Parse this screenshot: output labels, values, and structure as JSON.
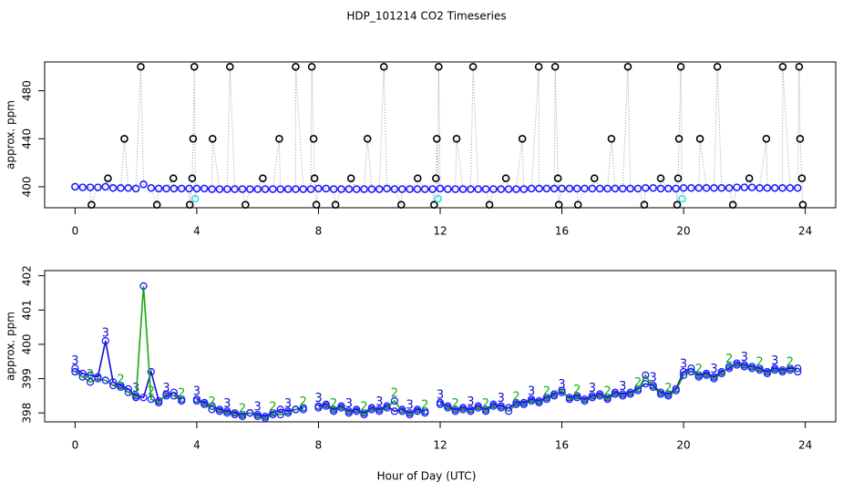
{
  "chart_data": [
    {
      "type": "scatter",
      "title": "HDP_101214  CO2 Timeseries",
      "ylabel": "approx. ppm",
      "xlim": [
        -1,
        25
      ],
      "ylim": [
        382.5,
        504
      ],
      "xticks": [
        0,
        4,
        8,
        12,
        16,
        20,
        24
      ],
      "yticks": [
        400,
        440,
        480
      ],
      "connector_color": "#9a9a9a",
      "series": [
        {
          "color": "#1f1fff",
          "x": [
            0,
            0.25,
            0.5,
            0.75,
            1,
            1.25,
            1.5,
            1.75,
            2,
            2.25,
            2.5,
            2.75,
            3,
            3.25,
            3.5,
            3.75,
            4,
            4.25,
            4.5,
            4.75,
            5,
            5.25,
            5.5,
            5.75,
            6,
            6.25,
            6.5,
            6.75,
            7,
            7.25,
            7.5,
            7.75,
            8,
            8.25,
            8.5,
            8.75,
            9,
            9.25,
            9.5,
            9.75,
            10,
            10.25,
            10.5,
            10.75,
            11,
            11.25,
            11.5,
            11.75,
            12,
            12.25,
            12.5,
            12.75,
            13,
            13.25,
            13.5,
            13.75,
            14,
            14.25,
            14.5,
            14.75,
            15,
            15.25,
            15.5,
            15.75,
            16,
            16.25,
            16.5,
            16.75,
            17,
            17.25,
            17.5,
            17.75,
            18,
            18.25,
            18.5,
            18.75,
            19,
            19.25,
            19.5,
            19.75,
            20,
            20.25,
            20.5,
            20.75,
            21,
            21.25,
            21.5,
            21.75,
            22,
            22.25,
            22.5,
            22.75,
            23,
            23.25,
            23.5,
            23.75
          ],
          "values": [
            400,
            399.5,
            399.5,
            399.5,
            400,
            399,
            399,
            399,
            398.5,
            402,
            399,
            398.5,
            398.5,
            398.5,
            398.5,
            398.5,
            398.5,
            398.5,
            398,
            398,
            398,
            398,
            398,
            398,
            398,
            398,
            398,
            398,
            398,
            398,
            398,
            398,
            398.5,
            398.5,
            398,
            398,
            398,
            398,
            398,
            398,
            398,
            398.5,
            398,
            398,
            398,
            398,
            398,
            398,
            398.5,
            398,
            398,
            398,
            398,
            398,
            398,
            398,
            398,
            398,
            398,
            398,
            398.5,
            398.5,
            398.5,
            398.5,
            398.5,
            398.5,
            398.5,
            398.5,
            398.5,
            398.5,
            398.5,
            398.5,
            398.5,
            398.5,
            398.5,
            399,
            399,
            398.5,
            398.5,
            398.5,
            399,
            399,
            399,
            399,
            399,
            399,
            399,
            399.5,
            399.5,
            399.5,
            399,
            399,
            399,
            399,
            399,
            399
          ]
        },
        {
          "color": "#000000",
          "x": [
            0.54,
            1.08,
            1.62,
            2.16,
            2.69,
            3.23,
            3.77,
            3.85,
            3.88,
            3.92,
            4.52,
            5.09,
            5.6,
            6.17,
            6.71,
            7.25,
            7.78,
            7.84,
            7.87,
            7.93,
            8.56,
            9.07,
            9.61,
            10.15,
            10.72,
            11.26,
            11.8,
            11.86,
            11.89,
            11.95,
            12.54,
            13.08,
            13.62,
            14.16,
            14.7,
            15.24,
            15.78,
            15.87,
            15.9,
            16.53,
            17.07,
            17.63,
            18.17,
            18.71,
            19.25,
            19.79,
            19.82,
            19.85,
            19.91,
            20.54,
            21.11,
            21.62,
            22.16,
            22.72,
            23.26,
            23.8,
            23.83,
            23.89,
            23.92
          ],
          "values": [
            385,
            407,
            440,
            500,
            385,
            407,
            385,
            407,
            440,
            500,
            440,
            500,
            385,
            407,
            440,
            500,
            500,
            440,
            407,
            385,
            385,
            407,
            440,
            500,
            385,
            407,
            385,
            407,
            440,
            500,
            440,
            500,
            385,
            407,
            440,
            500,
            500,
            407,
            385,
            385,
            407,
            440,
            500,
            385,
            407,
            385,
            407,
            440,
            500,
            440,
            500,
            385,
            407,
            440,
            500,
            500,
            440,
            407,
            385
          ]
        },
        {
          "color": "#33dddd",
          "x": [
            3.95,
            11.93,
            19.95
          ],
          "values": [
            390,
            390,
            390
          ]
        }
      ]
    },
    {
      "type": "line",
      "ylabel": "approx. ppm",
      "xlabel": "Hour of Day (UTC)",
      "xlim": [
        -1,
        25
      ],
      "ylim": [
        397.74,
        402.15
      ],
      "xticks": [
        0,
        4,
        8,
        12,
        16,
        20,
        24
      ],
      "yticks": [
        398,
        399,
        400,
        401,
        402
      ],
      "x": [
        0,
        0.25,
        0.5,
        0.75,
        1,
        1.25,
        1.5,
        1.75,
        2,
        2.25,
        2.5,
        2.75,
        3,
        3.25,
        3.5,
        3.75,
        4,
        4.25,
        4.5,
        4.75,
        5,
        5.25,
        5.5,
        5.75,
        6,
        6.25,
        6.5,
        6.75,
        7,
        7.25,
        7.5,
        7.75,
        8,
        8.25,
        8.5,
        8.75,
        9,
        9.25,
        9.5,
        9.75,
        10,
        10.25,
        10.5,
        10.75,
        11,
        11.25,
        11.5,
        11.75,
        12,
        12.25,
        12.5,
        12.75,
        13,
        13.25,
        13.5,
        13.75,
        14,
        14.25,
        14.5,
        14.75,
        15,
        15.25,
        15.5,
        15.75,
        16,
        16.25,
        16.5,
        16.75,
        17,
        17.25,
        17.5,
        17.75,
        18,
        18.25,
        18.5,
        18.75,
        19,
        19.25,
        19.5,
        19.75,
        20,
        20.25,
        20.5,
        20.75,
        21,
        21.25,
        21.5,
        21.75,
        22,
        22.25,
        22.5,
        22.75,
        23,
        23.25,
        23.5,
        23.75
      ],
      "series": [
        {
          "name": "3",
          "color": "#1010cc",
          "values": [
            399.3,
            399.15,
            399.1,
            399.05,
            400.1,
            398.9,
            398.8,
            398.7,
            398.5,
            398.45,
            399.2,
            398.35,
            398.5,
            398.6,
            398.4,
            null,
            398.4,
            398.3,
            398.2,
            398.1,
            398.05,
            398.0,
            397.95,
            398.0,
            397.95,
            397.9,
            398.0,
            398.1,
            398.05,
            398.1,
            398.15,
            null,
            398.2,
            398.25,
            398.1,
            398.2,
            398.05,
            398.1,
            398.0,
            398.15,
            398.1,
            398.2,
            398.05,
            398.1,
            398.0,
            398.1,
            398.05,
            null,
            398.3,
            398.2,
            398.1,
            398.15,
            398.1,
            398.2,
            398.1,
            398.25,
            398.2,
            398.15,
            398.3,
            398.3,
            398.4,
            398.35,
            398.45,
            398.55,
            398.6,
            398.45,
            398.5,
            398.4,
            398.5,
            398.55,
            398.45,
            398.6,
            398.55,
            398.6,
            398.7,
            398.85,
            398.8,
            398.6,
            398.55,
            398.7,
            399.2,
            399.3,
            399.1,
            399.15,
            399.05,
            399.2,
            399.3,
            399.45,
            399.4,
            399.35,
            399.3,
            399.2,
            399.3,
            399.25,
            399.3,
            399.3
          ]
        },
        {
          "name": "2",
          "color": "#11aa11",
          "values": [
            399.2,
            399.05,
            398.9,
            399.0,
            398.95,
            398.8,
            398.75,
            398.6,
            398.45,
            401.7,
            398.4,
            398.3,
            398.55,
            398.5,
            398.35,
            null,
            398.35,
            398.25,
            398.1,
            398.05,
            398.0,
            397.95,
            397.9,
            398.0,
            397.9,
            397.85,
            397.95,
            397.95,
            398.0,
            398.1,
            398.1,
            null,
            398.15,
            398.2,
            398.05,
            398.15,
            398.0,
            398.05,
            397.95,
            398.1,
            398.05,
            398.15,
            398.35,
            398.05,
            397.95,
            398.05,
            398.0,
            null,
            398.25,
            398.15,
            398.05,
            398.1,
            398.05,
            398.15,
            398.05,
            398.2,
            398.15,
            398.05,
            398.25,
            398.25,
            398.35,
            398.3,
            398.4,
            398.5,
            398.65,
            398.4,
            398.45,
            398.35,
            398.45,
            398.5,
            398.4,
            398.55,
            398.5,
            398.55,
            398.65,
            399.1,
            398.75,
            398.55,
            398.5,
            398.65,
            399.1,
            399.2,
            399.05,
            399.1,
            399.0,
            399.15,
            399.35,
            399.4,
            399.35,
            399.3,
            399.25,
            399.15,
            399.25,
            399.2,
            399.25,
            399.2
          ]
        }
      ]
    }
  ]
}
